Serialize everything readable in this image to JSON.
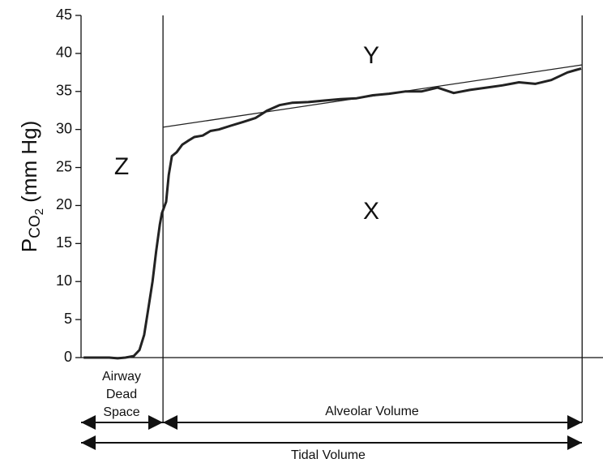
{
  "chart_data": {
    "type": "line",
    "ylabel": {
      "main": "P",
      "sub": "CO",
      "subsub": "2",
      "rest": " (mm Hg)"
    },
    "ylim": [
      0,
      45
    ],
    "yticks": [
      0,
      5,
      10,
      15,
      20,
      25,
      30,
      35,
      40,
      45
    ],
    "xlim": [
      0,
      100
    ],
    "series": [
      {
        "color": "#222222",
        "x": [
          0.5,
          3.1,
          5.4,
          7.0,
          8.5,
          10.1,
          11.2,
          12.1,
          12.9,
          13.7,
          14.4,
          15.1,
          15.5,
          16.3,
          16.8,
          17.4,
          18.3,
          19.4,
          20.5,
          21.7,
          23.3,
          24.8,
          26.4,
          28.7,
          31.1,
          33.4,
          35.7,
          38.0,
          40.4,
          43.5,
          46.6,
          49.7,
          52.8,
          55.9,
          59.0,
          62.1,
          65.2,
          68.3,
          71.4,
          74.5,
          77.6,
          80.7,
          83.9,
          87.0,
          90.1,
          93.2,
          94.7,
          95.8
        ],
        "values": [
          0,
          0,
          0,
          -0.1,
          0,
          0.2,
          1,
          3,
          6.5,
          10,
          14,
          17.5,
          19,
          20.5,
          24,
          26.5,
          27,
          28,
          28.5,
          29,
          29.2,
          29.8,
          30,
          30.5,
          31,
          31.5,
          32.5,
          33.2,
          33.5,
          33.6,
          33.8,
          34,
          34.1,
          34.5,
          34.7,
          35,
          35,
          35.5,
          34.8,
          35.2,
          35.5,
          35.8,
          36.2,
          36,
          36.5,
          37.5,
          37.8,
          38
        ]
      }
    ],
    "trend": {
      "color": "#222222",
      "x": [
        15.7,
        96
      ],
      "values": [
        30.3,
        38.5
      ]
    },
    "boundaries": [
      15.7,
      96
    ],
    "annotations": [
      "Y",
      "Z",
      "X"
    ],
    "spans": {
      "dead_space": [
        "Airway",
        "Dead",
        "Space"
      ],
      "alveolar": "Alveolar Volume",
      "tidal": "Tidal Volume"
    }
  }
}
